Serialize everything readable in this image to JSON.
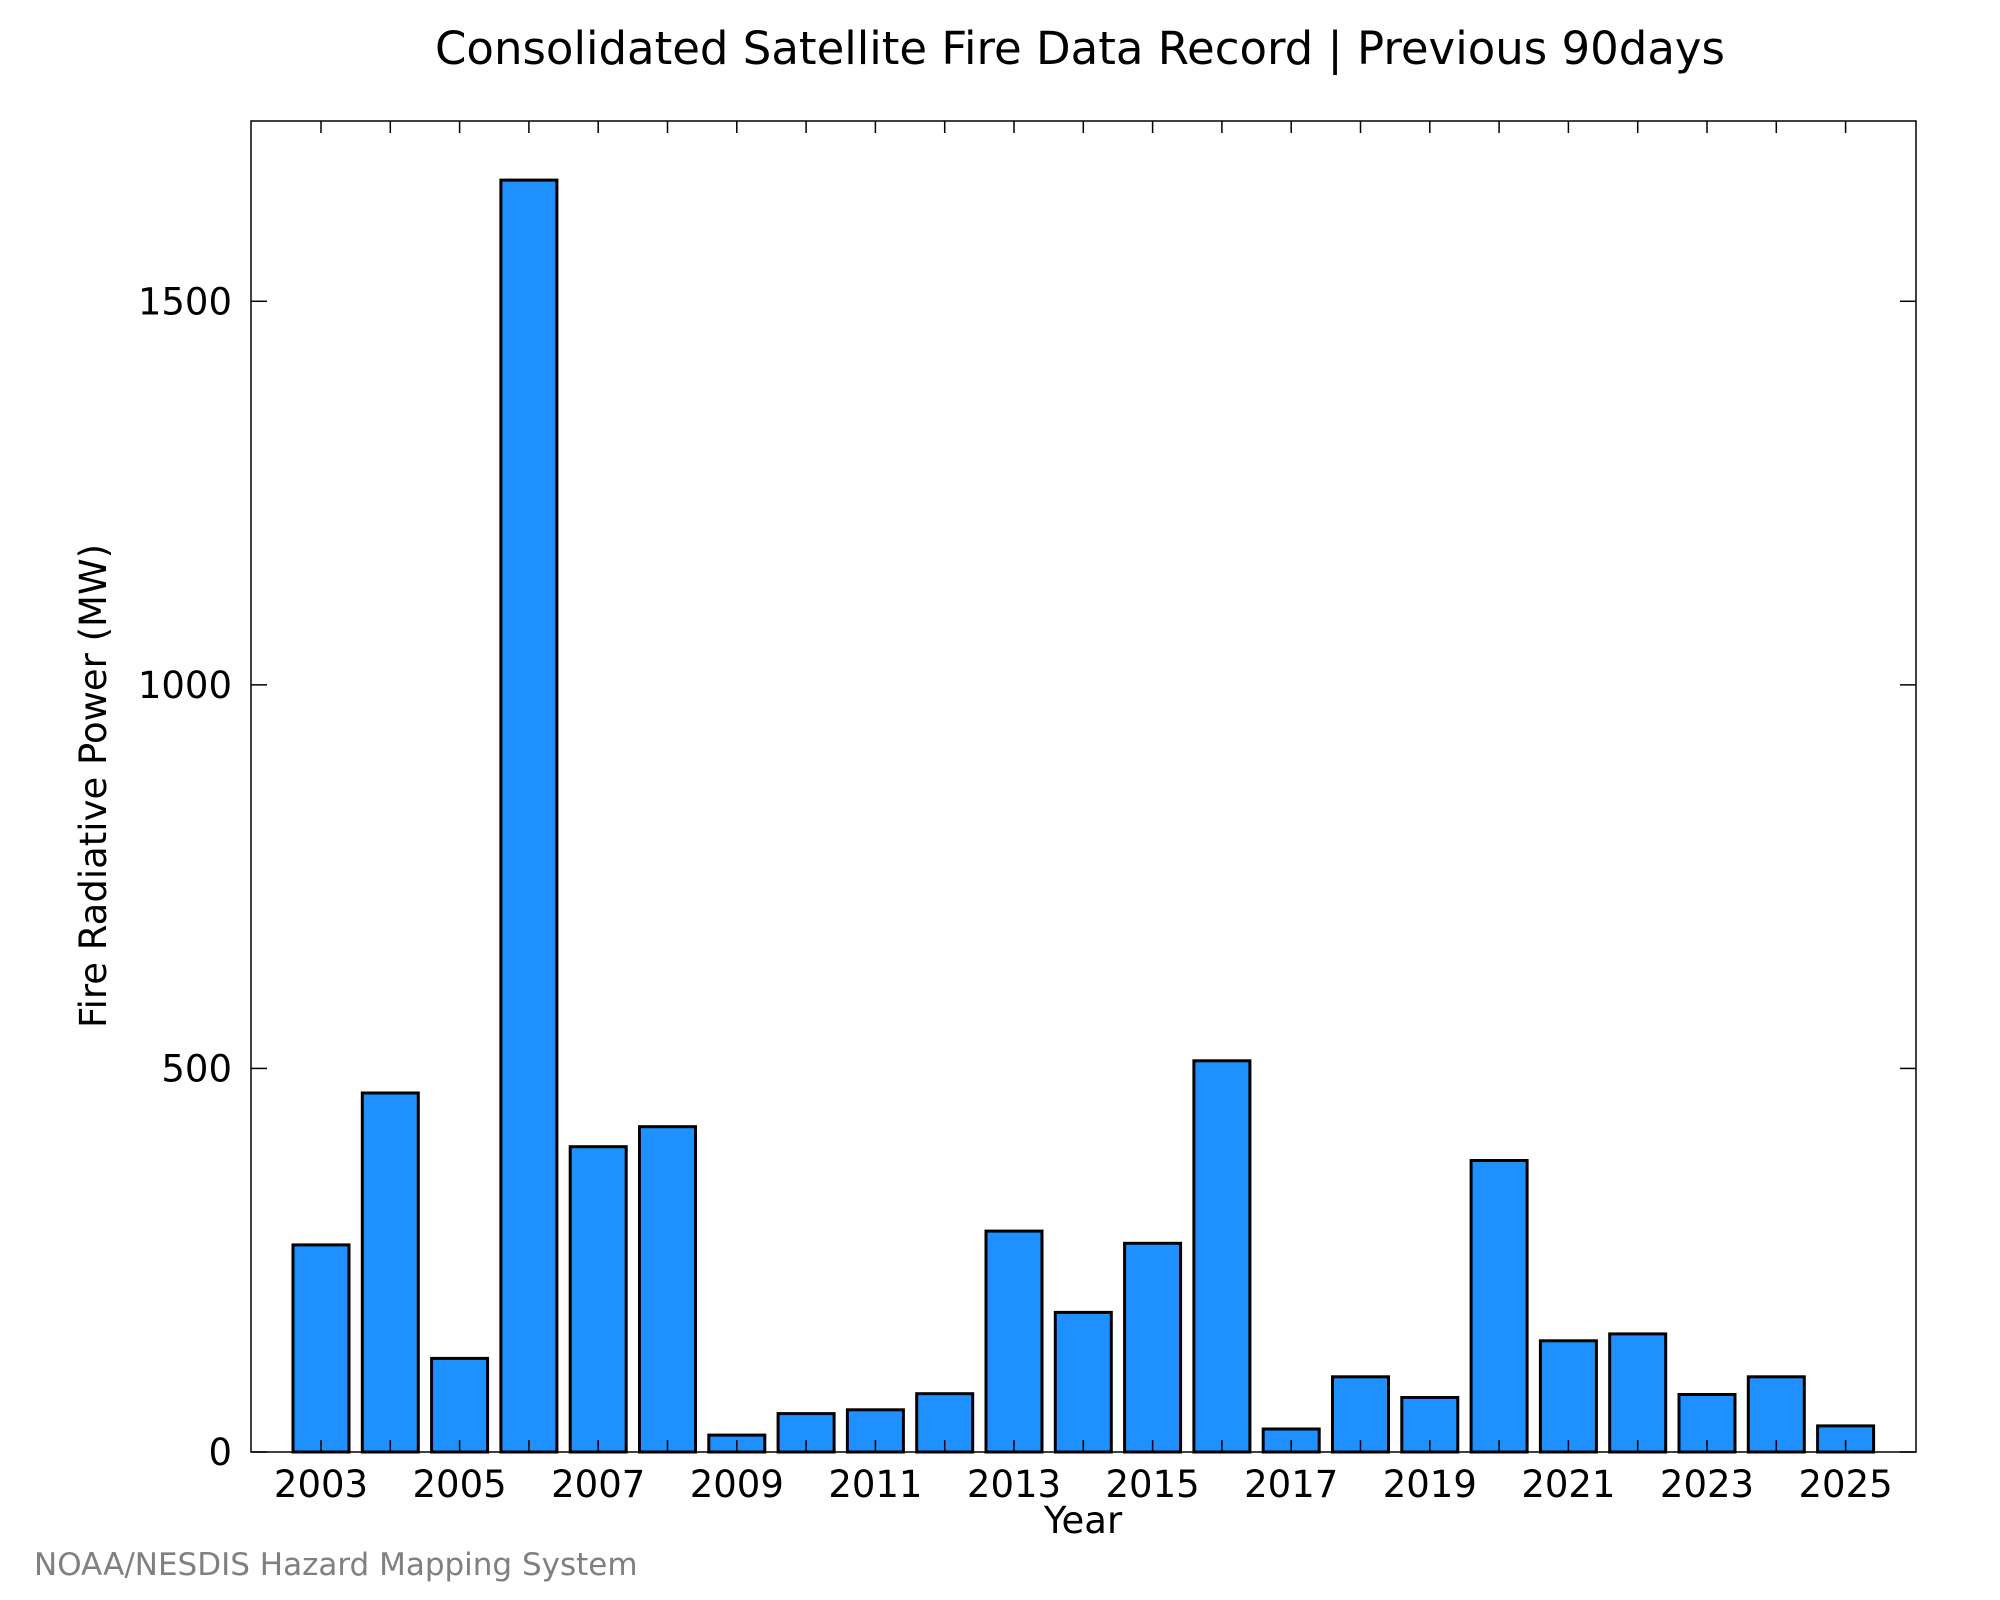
{
  "chart_data": {
    "type": "bar",
    "title": "Consolidated Satellite Fire Data Record | Previous 90days",
    "xlabel": "Year",
    "ylabel": "Fire Radiative Power (MW)",
    "categories": [
      "2003",
      "2004",
      "2005",
      "2006",
      "2007",
      "2008",
      "2009",
      "2010",
      "2011",
      "2012",
      "2013",
      "2014",
      "2015",
      "2016",
      "2017",
      "2018",
      "2019",
      "2020",
      "2021",
      "2022",
      "2023",
      "2024",
      "2025"
    ],
    "values": [
      270,
      468,
      122,
      1658,
      398,
      424,
      22,
      50,
      55,
      76,
      288,
      182,
      272,
      510,
      30,
      98,
      71,
      380,
      145,
      154,
      75,
      98,
      34
    ],
    "x_tick_labels": [
      "2003",
      "2005",
      "2007",
      "2009",
      "2011",
      "2013",
      "2015",
      "2017",
      "2019",
      "2021",
      "2023",
      "2025"
    ],
    "y_ticks": [
      0,
      500,
      1000,
      1500
    ],
    "ylim": [
      0,
      1735
    ],
    "grid": false,
    "bar_color": "#1e90ff",
    "bar_edge_color": "#000000"
  },
  "footer": {
    "credit": "NOAA/NESDIS Hazard Mapping System"
  }
}
